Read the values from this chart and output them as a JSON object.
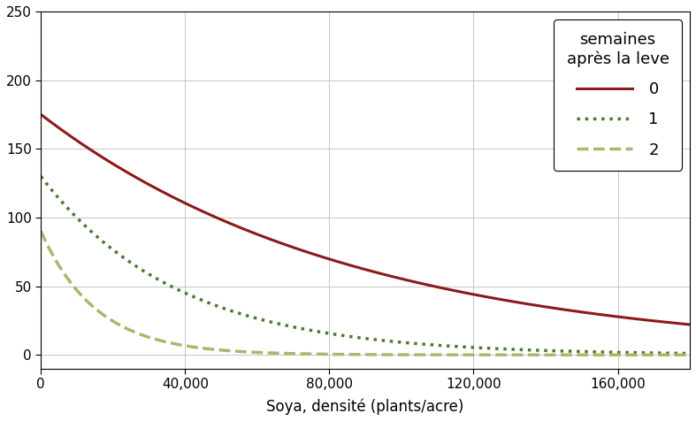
{
  "xlabel": "Soya, densité (plants/acre)",
  "xlim": [
    0,
    180000
  ],
  "ylim": [
    -10,
    250
  ],
  "yticks": [
    0,
    50,
    100,
    150,
    200,
    250
  ],
  "xticks": [
    0,
    40000,
    80000,
    120000,
    160000
  ],
  "series": [
    {
      "label": "0",
      "color": "#8B1A1A",
      "linestyle": "solid",
      "linewidth": 2.2,
      "a": 175,
      "b": 1.15e-05
    },
    {
      "label": "1",
      "color": "#4a7a30",
      "linestyle": "dotted",
      "linewidth": 2.5,
      "a": 130,
      "b": 2.65e-05
    },
    {
      "label": "2",
      "color": "#a8b86a",
      "linestyle": "dashed",
      "linewidth": 2.5,
      "a": 90,
      "b": 6.5e-05
    }
  ],
  "legend_title": "semaines\naprès la leve",
  "background_color": "#ffffff",
  "grid_color": "#bbbbbb"
}
